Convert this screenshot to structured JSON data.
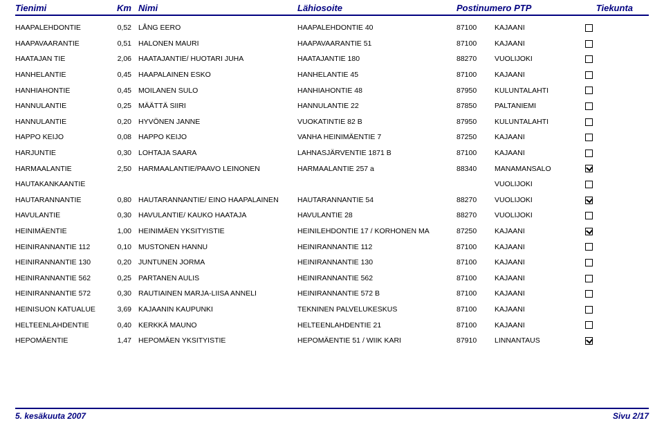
{
  "headers": {
    "tienimi": "Tienimi",
    "km": "Km",
    "nimi": "Nimi",
    "lahiosoite": "Lähiosoite",
    "postinumero": "Postinumero",
    "ptp": "PTP",
    "tiekunta": "Tiekunta"
  },
  "rows": [
    {
      "t": "HAAPALEHDONTIE",
      "km": "0,52",
      "n": "LÅNG EERO",
      "l": "HAAPALEHDONTIE 40",
      "p": "87100",
      "ptp": "KAJAANI",
      "c": false
    },
    {
      "t": "HAAPAVAARANTIE",
      "km": "0,51",
      "n": "HALONEN MAURI",
      "l": "HAAPAVAARANTIE 51",
      "p": "87100",
      "ptp": "KAJAANI",
      "c": false
    },
    {
      "t": "HAATAJAN TIE",
      "km": "2,06",
      "n": "HAATAJANTIE/ HUOTARI JUHA",
      "l": "HAATAJANTIE 180",
      "p": "88270",
      "ptp": "VUOLIJOKI",
      "c": false
    },
    {
      "t": "HANHELANTIE",
      "km": "0,45",
      "n": "HAAPALAINEN ESKO",
      "l": "HANHELANTIE 45",
      "p": "87100",
      "ptp": "KAJAANI",
      "c": false
    },
    {
      "t": "HANHIAHONTIE",
      "km": "0,45",
      "n": "MOILANEN SULO",
      "l": "HANHIAHONTIE 48",
      "p": "87950",
      "ptp": "KULUNTALAHTI",
      "c": false
    },
    {
      "t": "HANNULANTIE",
      "km": "0,25",
      "n": "MÄÄTTÄ SIIRI",
      "l": "HANNULANTIE 22",
      "p": "87850",
      "ptp": "PALTANIEMI",
      "c": false
    },
    {
      "t": "HANNULANTIE",
      "km": "0,20",
      "n": "HYVÖNEN JANNE",
      "l": "VUOKATINTIE 82 B",
      "p": "87950",
      "ptp": "KULUNTALAHTI",
      "c": false
    },
    {
      "t": "HAPPO KEIJO",
      "km": "0,08",
      "n": "HAPPO KEIJO",
      "l": "VANHA HEINIMÄENTIE 7",
      "p": "87250",
      "ptp": "KAJAANI",
      "c": false
    },
    {
      "t": "HARJUNTIE",
      "km": "0,30",
      "n": "LOHTAJA SAARA",
      "l": "LAHNASJÄRVENTIE 1871 B",
      "p": "87100",
      "ptp": "KAJAANI",
      "c": false
    },
    {
      "t": "HARMAALANTIE",
      "km": "2,50",
      "n": "HARMAALANTIE/PAAVO LEINONEN",
      "l": "HARMAALANTIE 257 a",
      "p": "88340",
      "ptp": "MANAMANSALO",
      "c": true
    },
    {
      "t": "HAUTAKANKAANTIE",
      "km": "",
      "n": "",
      "l": "",
      "p": "",
      "ptp": "VUOLIJOKI",
      "c": false
    },
    {
      "t": "HAUTARANNANTIE",
      "km": "0,80",
      "n": "HAUTARANNANTIE/ EINO HAAPALAINEN",
      "l": "HAUTARANNANTIE 54",
      "p": "88270",
      "ptp": "VUOLIJOKI",
      "c": true
    },
    {
      "t": "HAVULANTIE",
      "km": "0,30",
      "n": "HAVULANTIE/ KAUKO HAATAJA",
      "l": "HAVULANTIE 28",
      "p": "88270",
      "ptp": "VUOLIJOKI",
      "c": false
    },
    {
      "t": "HEINIMÄENTIE",
      "km": "1,00",
      "n": "HEINIMÄEN YKSITYISTIE",
      "l": "HEINILEHDONTIE 17 / KORHONEN MA",
      "p": "87250",
      "ptp": "KAJAANI",
      "c": true
    },
    {
      "t": "HEINIRANNANTIE 112",
      "km": "0,10",
      "n": "MUSTONEN HANNU",
      "l": "HEINIRANNANTIE 112",
      "p": "87100",
      "ptp": "KAJAANI",
      "c": false
    },
    {
      "t": "HEINIRANNANTIE 130",
      "km": "0,20",
      "n": "JUNTUNEN JORMA",
      "l": "HEINIRANNANTIE 130",
      "p": "87100",
      "ptp": "KAJAANI",
      "c": false
    },
    {
      "t": "HEINIRANNANTIE 562",
      "km": "0,25",
      "n": "PARTANEN AULIS",
      "l": "HEINIRANNANTIE 562",
      "p": "87100",
      "ptp": "KAJAANI",
      "c": false
    },
    {
      "t": "HEINIRANNANTIE 572",
      "km": "0,30",
      "n": "RAUTIAINEN MARJA-LIISA ANNELI",
      "l": "HEINIRANNANTIE 572 B",
      "p": "87100",
      "ptp": "KAJAANI",
      "c": false
    },
    {
      "t": "HEINISUON KATUALUE",
      "km": "3,69",
      "n": "KAJAANIN KAUPUNKI",
      "l": "TEKNINEN PALVELUKESKUS",
      "p": "87100",
      "ptp": "KAJAANI",
      "c": false
    },
    {
      "t": "HELTEENLAHDENTIE",
      "km": "0,40",
      "n": "KERKKÄ MAUNO",
      "l": "HELTEENLAHDENTIE 21",
      "p": "87100",
      "ptp": "KAJAANI",
      "c": false
    },
    {
      "t": "HEPOMÄENTIE",
      "km": "1,47",
      "n": "HEPOMÄEN YKSITYISTIE",
      "l": "HEPOMÄENTIE 51 / WIIK KARI",
      "p": "87910",
      "ptp": "LINNANTAUS",
      "c": true
    }
  ],
  "footer": {
    "left": "5. kesäkuuta 2007",
    "right": "Sivu 2/17"
  }
}
